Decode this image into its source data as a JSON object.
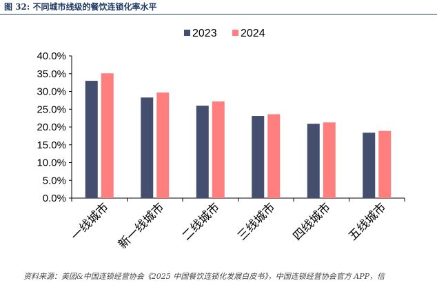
{
  "title": "图 32: 不同城市线级的餐饮连锁化率水平",
  "source": "资料来源：美团&中国连锁经营协会《2025 中国餐饮连锁化发展白皮书》，中国连锁经营协会官方 APP，信",
  "colors": {
    "title": "#1f3864",
    "axis": "#000000"
  },
  "chart_data": {
    "type": "bar",
    "categories": [
      "一线城市",
      "新一线城市",
      "二线城市",
      "三线城市",
      "四线城市",
      "五线城市"
    ],
    "series": [
      {
        "name": "2023",
        "color": "#444e6e",
        "values": [
          0.33,
          0.283,
          0.26,
          0.231,
          0.209,
          0.184
        ]
      },
      {
        "name": "2024",
        "color": "#ff7f7f",
        "values": [
          0.351,
          0.297,
          0.272,
          0.236,
          0.213,
          0.189
        ]
      }
    ],
    "ylim": [
      0,
      0.4
    ],
    "yticks": [
      "0.0%",
      "5.0%",
      "10.0%",
      "15.0%",
      "20.0%",
      "25.0%",
      "30.0%",
      "35.0%",
      "40.0%"
    ],
    "legend_position": "top-center",
    "grid": false
  }
}
